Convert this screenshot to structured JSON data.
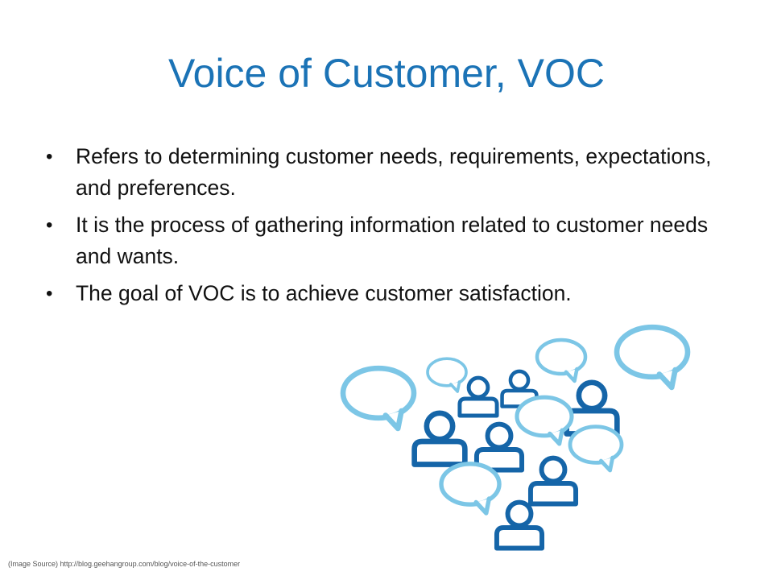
{
  "slide": {
    "title": "Voice of Customer, VOC",
    "bullets": [
      "Refers to determining customer needs, requirements, expectations, and preferences.",
      "It is the process of gathering information related to customer needs and wants.",
      "The goal of VOC is to achieve customer satisfaction."
    ],
    "bullet_symbol": "•",
    "image_source": "(Image Source) http://blog.geehangroup.com/blog/voice-of-the-customer"
  },
  "colors": {
    "title": "#1b73b6",
    "person": "#1565a8",
    "bubble": "#7cc6e6"
  },
  "illustration": {
    "icon": "people-speech-bubbles-icon"
  }
}
